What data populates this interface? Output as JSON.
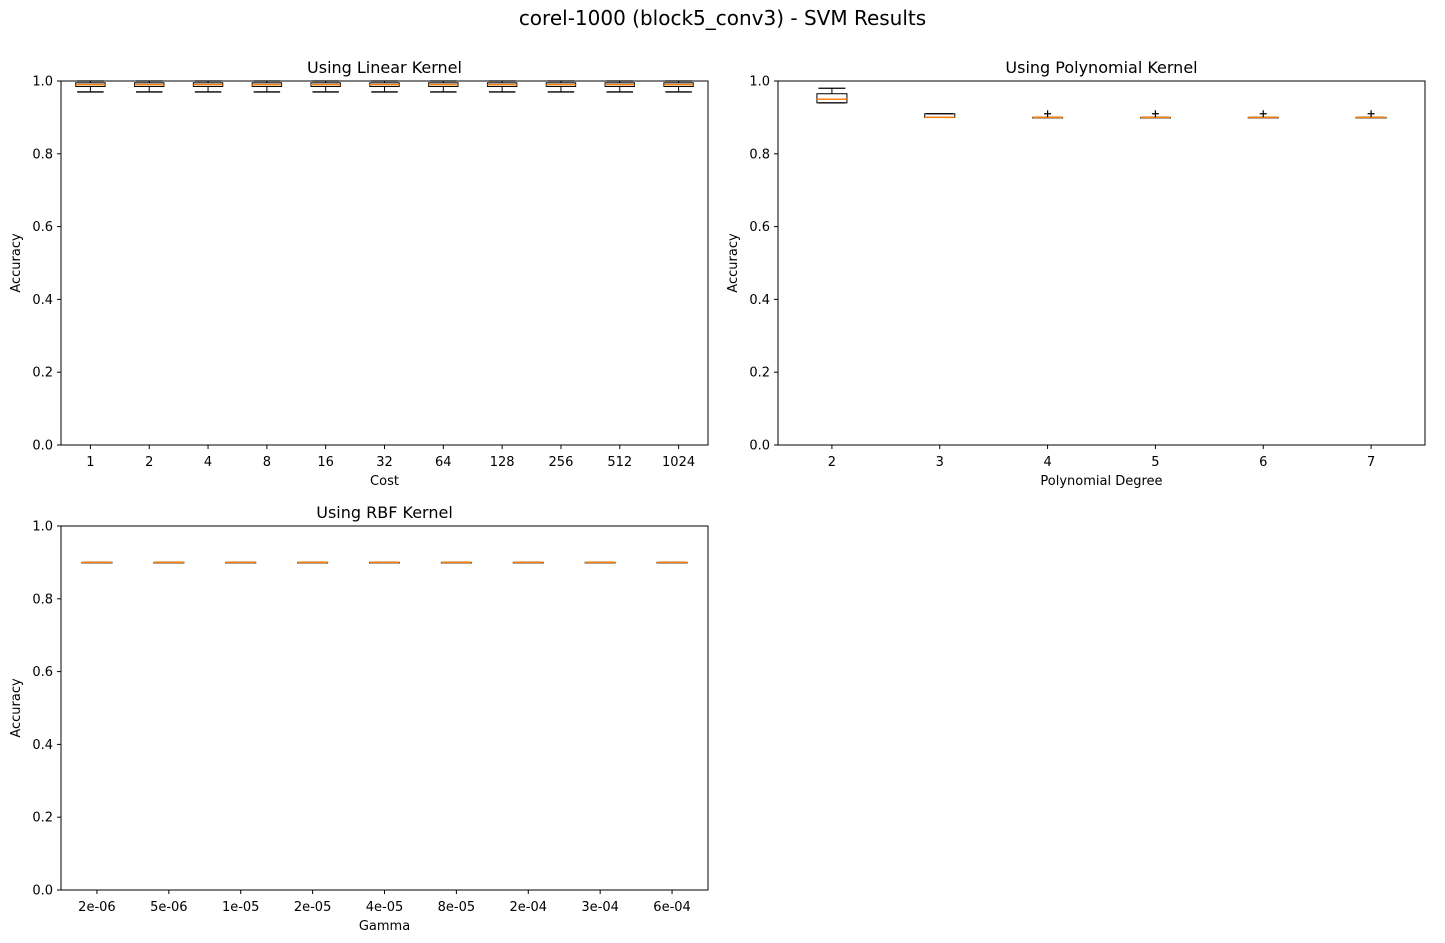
{
  "suptitle": "corel-1000 (block5_conv3) - SVM Results",
  "colors": {
    "box": "#000000",
    "median": "#ff7f0e",
    "axes": "#000000"
  },
  "chart_data": [
    {
      "type": "box",
      "title": "Using Linear Kernel",
      "xlabel": "Cost",
      "ylabel": "Accuracy",
      "ylim": [
        0,
        1
      ],
      "yticks": [
        "0.0",
        "0.2",
        "0.4",
        "0.6",
        "0.8",
        "1.0"
      ],
      "categories": [
        "1",
        "2",
        "4",
        "8",
        "16",
        "32",
        "64",
        "128",
        "256",
        "512",
        "1024"
      ],
      "boxes": [
        {
          "whislo": 0.97,
          "q1": 0.985,
          "med": 0.99,
          "q3": 0.995,
          "whishi": 1.0,
          "fliers": []
        },
        {
          "whislo": 0.97,
          "q1": 0.985,
          "med": 0.99,
          "q3": 0.995,
          "whishi": 1.0,
          "fliers": []
        },
        {
          "whislo": 0.97,
          "q1": 0.985,
          "med": 0.99,
          "q3": 0.995,
          "whishi": 1.0,
          "fliers": []
        },
        {
          "whislo": 0.97,
          "q1": 0.985,
          "med": 0.99,
          "q3": 0.995,
          "whishi": 1.0,
          "fliers": []
        },
        {
          "whislo": 0.97,
          "q1": 0.985,
          "med": 0.99,
          "q3": 0.995,
          "whishi": 1.0,
          "fliers": []
        },
        {
          "whislo": 0.97,
          "q1": 0.985,
          "med": 0.99,
          "q3": 0.995,
          "whishi": 1.0,
          "fliers": []
        },
        {
          "whislo": 0.97,
          "q1": 0.985,
          "med": 0.99,
          "q3": 0.995,
          "whishi": 1.0,
          "fliers": []
        },
        {
          "whislo": 0.97,
          "q1": 0.985,
          "med": 0.99,
          "q3": 0.995,
          "whishi": 1.0,
          "fliers": []
        },
        {
          "whislo": 0.97,
          "q1": 0.985,
          "med": 0.99,
          "q3": 0.995,
          "whishi": 1.0,
          "fliers": []
        },
        {
          "whislo": 0.97,
          "q1": 0.985,
          "med": 0.99,
          "q3": 0.995,
          "whishi": 1.0,
          "fliers": []
        },
        {
          "whislo": 0.97,
          "q1": 0.985,
          "med": 0.99,
          "q3": 0.995,
          "whishi": 1.0,
          "fliers": []
        }
      ]
    },
    {
      "type": "box",
      "title": "Using Polynomial Kernel",
      "xlabel": "Polynomial Degree",
      "ylabel": "Accuracy",
      "ylim": [
        0,
        1
      ],
      "yticks": [
        "0.0",
        "0.2",
        "0.4",
        "0.6",
        "0.8",
        "1.0"
      ],
      "categories": [
        "2",
        "3",
        "4",
        "5",
        "6",
        "7"
      ],
      "boxes": [
        {
          "whislo": 0.94,
          "q1": 0.94,
          "med": 0.95,
          "q3": 0.965,
          "whishi": 0.98,
          "fliers": []
        },
        {
          "whislo": 0.9,
          "q1": 0.9,
          "med": 0.9,
          "q3": 0.91,
          "whishi": 0.91,
          "fliers": []
        },
        {
          "whislo": 0.9,
          "q1": 0.9,
          "med": 0.9,
          "q3": 0.9,
          "whishi": 0.9,
          "fliers": [
            0.91
          ]
        },
        {
          "whislo": 0.9,
          "q1": 0.9,
          "med": 0.9,
          "q3": 0.9,
          "whishi": 0.9,
          "fliers": [
            0.91
          ]
        },
        {
          "whislo": 0.9,
          "q1": 0.9,
          "med": 0.9,
          "q3": 0.9,
          "whishi": 0.9,
          "fliers": [
            0.91
          ]
        },
        {
          "whislo": 0.9,
          "q1": 0.9,
          "med": 0.9,
          "q3": 0.9,
          "whishi": 0.9,
          "fliers": [
            0.91
          ]
        }
      ]
    },
    {
      "type": "box",
      "title": "Using RBF Kernel",
      "xlabel": "Gamma",
      "ylabel": "Accuracy",
      "ylim": [
        0,
        1
      ],
      "yticks": [
        "0.0",
        "0.2",
        "0.4",
        "0.6",
        "0.8",
        "1.0"
      ],
      "categories": [
        "2e-06",
        "5e-06",
        "1e-05",
        "2e-05",
        "4e-05",
        "8e-05",
        "2e-04",
        "3e-04",
        "6e-04"
      ],
      "boxes": [
        {
          "whislo": 0.9,
          "q1": 0.9,
          "med": 0.9,
          "q3": 0.9,
          "whishi": 0.9,
          "fliers": []
        },
        {
          "whislo": 0.9,
          "q1": 0.9,
          "med": 0.9,
          "q3": 0.9,
          "whishi": 0.9,
          "fliers": []
        },
        {
          "whislo": 0.9,
          "q1": 0.9,
          "med": 0.9,
          "q3": 0.9,
          "whishi": 0.9,
          "fliers": []
        },
        {
          "whislo": 0.9,
          "q1": 0.9,
          "med": 0.9,
          "q3": 0.9,
          "whishi": 0.9,
          "fliers": []
        },
        {
          "whislo": 0.9,
          "q1": 0.9,
          "med": 0.9,
          "q3": 0.9,
          "whishi": 0.9,
          "fliers": []
        },
        {
          "whislo": 0.9,
          "q1": 0.9,
          "med": 0.9,
          "q3": 0.9,
          "whishi": 0.9,
          "fliers": []
        },
        {
          "whislo": 0.9,
          "q1": 0.9,
          "med": 0.9,
          "q3": 0.9,
          "whishi": 0.9,
          "fliers": []
        },
        {
          "whislo": 0.9,
          "q1": 0.9,
          "med": 0.9,
          "q3": 0.9,
          "whishi": 0.9,
          "fliers": []
        },
        {
          "whislo": 0.9,
          "q1": 0.9,
          "med": 0.9,
          "q3": 0.9,
          "whishi": 0.9,
          "fliers": []
        }
      ]
    }
  ]
}
